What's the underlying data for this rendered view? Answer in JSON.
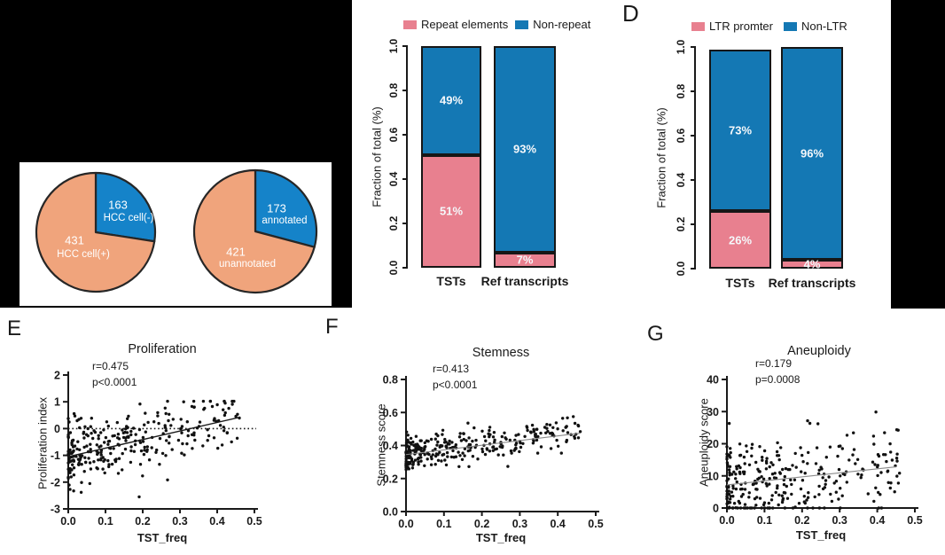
{
  "figure": {
    "background": "#ffffff",
    "mask_color": "#000000",
    "panel_labels": {
      "d": "D",
      "e": "E",
      "f": "F",
      "g": "G"
    },
    "colors": {
      "pink": "#e8808f",
      "blue": "#1478b4",
      "pie_orange": "#f0a47c",
      "pie_blue": "#1583c9",
      "trend_gray": "#8a8a8a",
      "axis": "#1a1a1a",
      "point": "#111111",
      "on_bar_text": "#f5f8fb",
      "pie_text": "#ffffff"
    }
  },
  "chart_data": [
    {
      "id": "hcc-pie",
      "type": "pie",
      "start": "top",
      "direction": "clockwise",
      "slices": [
        {
          "label": "HCC cell(-)",
          "value": 163,
          "value_label": "163",
          "color_key": "pie_blue"
        },
        {
          "label": "HCC cell(+)",
          "value": 431,
          "value_label": "431",
          "color_key": "pie_orange"
        }
      ]
    },
    {
      "id": "annotation-pie",
      "type": "pie",
      "start": "top",
      "direction": "clockwise",
      "slices": [
        {
          "label": "annotated",
          "value": 173,
          "value_label": "173",
          "color_key": "pie_blue"
        },
        {
          "label": "unannotated",
          "value": 421,
          "value_label": "421",
          "color_key": "pie_orange"
        }
      ]
    },
    {
      "id": "repeat-stacked-bar",
      "type": "bar",
      "stacked": true,
      "legend": [
        {
          "label": "Repeat elements",
          "color_key": "pink"
        },
        {
          "label": "Non-repeat",
          "color_key": "blue"
        }
      ],
      "categories": [
        "TSTs",
        "Ref transcripts"
      ],
      "series": [
        {
          "name": "Repeat elements",
          "color_key": "pink",
          "values": [
            0.51,
            0.07
          ],
          "labels": [
            "51%",
            "7%"
          ]
        },
        {
          "name": "Non-repeat",
          "color_key": "blue",
          "values": [
            0.49,
            0.93
          ],
          "labels": [
            "49%",
            "93%"
          ]
        }
      ],
      "ylabel": "Fraction of total (%)",
      "ylim": [
        0,
        1
      ],
      "yticks": [
        "0.0",
        "0.2",
        "0.4",
        "0.6",
        "0.8",
        "1.0"
      ]
    },
    {
      "id": "ltr-stacked-bar",
      "type": "bar",
      "stacked": true,
      "legend": [
        {
          "label": "LTR promter",
          "color_key": "pink"
        },
        {
          "label": "Non-LTR",
          "color_key": "blue"
        }
      ],
      "categories": [
        "TSTs",
        "Ref transcripts"
      ],
      "series": [
        {
          "name": "LTR promter",
          "color_key": "pink",
          "values": [
            0.26,
            0.04
          ],
          "labels": [
            "26%",
            "4%"
          ]
        },
        {
          "name": "Non-LTR",
          "color_key": "blue",
          "values": [
            0.73,
            0.96
          ],
          "labels": [
            "73%",
            "96%"
          ]
        }
      ],
      "ylabel": "Fraction of total (%)",
      "ylim": [
        0,
        1
      ],
      "yticks": [
        "0.0",
        "0.2",
        "0.4",
        "0.6",
        "0.8",
        "1.0"
      ]
    },
    {
      "id": "proliferation-scatter",
      "type": "scatter",
      "title": "Proliferation",
      "r_label": "r=0.475",
      "p_label": "p<0.0001",
      "xlabel": "TST_freq",
      "ylabel": "Proliferation index",
      "xlim": [
        0,
        0.5
      ],
      "ylim": [
        -3,
        2
      ],
      "xticks": [
        "0.0",
        "0.1",
        "0.2",
        "0.3",
        "0.4",
        "0.5"
      ],
      "yticks_top_to_bottom": [
        "2",
        "1",
        "0",
        "-1",
        "-2",
        "-3"
      ],
      "zero_line_y": 0,
      "trend": {
        "x1": 0,
        "y1": -1.05,
        "x2": 0.46,
        "y2": 0.42,
        "color_key": "axis",
        "width": 1.4
      },
      "points": {
        "count": 300,
        "seed": 11,
        "x_max": 0.46,
        "x_power": 1.9,
        "intercept": -1.05,
        "slope": 3.2,
        "noise_sd": 0.58,
        "y_clip": [
          -2.55,
          1.02
        ]
      }
    },
    {
      "id": "stemness-scatter",
      "type": "scatter",
      "title": "Stemness",
      "r_label": "r=0.413",
      "p_label": "p<0.0001",
      "xlabel": "TST_freq",
      "ylabel": "Stemness score",
      "xlim": [
        0,
        0.5
      ],
      "ylim": [
        0,
        0.8
      ],
      "xticks": [
        "0.0",
        "0.1",
        "0.2",
        "0.3",
        "0.4",
        "0.5"
      ],
      "yticks_top_to_bottom": [
        "0.8",
        "0.6",
        "0.4",
        "0.2",
        "0.0"
      ],
      "zero_line_y": null,
      "trend": {
        "x1": 0,
        "y1": 0.345,
        "x2": 0.46,
        "y2": 0.475,
        "color_key": "trend_gray",
        "width": 1.1
      },
      "points": {
        "count": 310,
        "seed": 23,
        "x_max": 0.46,
        "x_power": 1.9,
        "intercept": 0.345,
        "slope": 0.28,
        "noise_sd": 0.05,
        "y_clip": [
          0.16,
          0.575
        ]
      }
    },
    {
      "id": "aneuploidy-scatter",
      "type": "scatter",
      "title": "Aneuploidy",
      "r_label": "r=0.179",
      "p_label": "p=0.0008",
      "xlabel": "TST_freq",
      "ylabel": "Aneuploidy score",
      "xlim": [
        0,
        0.5
      ],
      "ylim": [
        0,
        40
      ],
      "xticks": [
        "0.0",
        "0.1",
        "0.2",
        "0.3",
        "0.4",
        "0.5"
      ],
      "yticks_top_to_bottom": [
        "40",
        "30",
        "20",
        "10",
        "0"
      ],
      "zero_line_y": null,
      "trend": {
        "x1": 0,
        "y1": 7.2,
        "x2": 0.45,
        "y2": 12.8,
        "color_key": "trend_gray",
        "width": 1.1
      },
      "points": {
        "count": 300,
        "seed": 37,
        "x_max": 0.46,
        "x_power": 1.9,
        "intercept": 7.2,
        "slope": 12,
        "noise_sd": 6.8,
        "y_clip": [
          0,
          33
        ]
      }
    }
  ]
}
